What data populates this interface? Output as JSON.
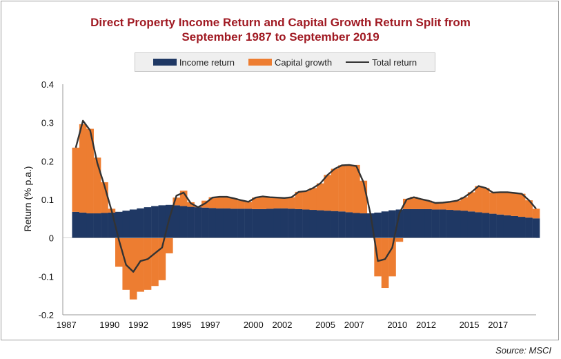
{
  "chart_data": {
    "type": "area",
    "title_line1": "Direct Property Income Return and Capital Growth Return Split from",
    "title_line2": "September 1987 to September 2019",
    "ylabel": "Return (% p.a.)",
    "xlabel": "",
    "ylim": [
      -0.2,
      0.4
    ],
    "yticks": [
      -0.2,
      -0.1,
      0,
      0.1,
      0.2,
      0.3,
      0.4
    ],
    "ytick_labels": [
      "-0.2",
      "-0.1",
      "0",
      "0.1",
      "0.2",
      "0.3",
      "0.4"
    ],
    "xlim": [
      1987.75,
      2019.75
    ],
    "xticks": [
      1987,
      1990,
      1992,
      1995,
      1997,
      2000,
      2002,
      2005,
      2007,
      2010,
      2012,
      2015,
      2017
    ],
    "grid": false,
    "legend_position": "top",
    "x": [
      1987.75,
      1988.25,
      1988.75,
      1989.25,
      1989.75,
      1990.25,
      1990.75,
      1991.25,
      1991.75,
      1992.25,
      1992.75,
      1993.25,
      1993.75,
      1994.25,
      1994.75,
      1995.25,
      1995.75,
      1996.25,
      1996.75,
      1997.25,
      1997.75,
      1998.25,
      1998.75,
      1999.25,
      1999.75,
      2000.25,
      2000.75,
      2001.25,
      2001.75,
      2002.25,
      2002.75,
      2003.25,
      2003.75,
      2004.25,
      2004.75,
      2005.25,
      2005.75,
      2006.25,
      2006.75,
      2007.25,
      2007.75,
      2008.25,
      2008.75,
      2009.25,
      2009.75,
      2010.25,
      2010.75,
      2011.25,
      2011.75,
      2012.25,
      2012.75,
      2013.25,
      2013.75,
      2014.25,
      2014.75,
      2015.25,
      2015.75,
      2016.25,
      2016.75,
      2017.25,
      2017.75,
      2018.25,
      2018.75,
      2019.25,
      2019.75
    ],
    "series": [
      {
        "name": "Income return",
        "color": "#1f3864",
        "values": [
          0.068,
          0.066,
          0.064,
          0.064,
          0.065,
          0.066,
          0.068,
          0.071,
          0.074,
          0.077,
          0.08,
          0.083,
          0.085,
          0.086,
          0.085,
          0.083,
          0.081,
          0.08,
          0.079,
          0.078,
          0.077,
          0.077,
          0.076,
          0.076,
          0.076,
          0.075,
          0.075,
          0.076,
          0.077,
          0.077,
          0.076,
          0.075,
          0.074,
          0.073,
          0.072,
          0.071,
          0.07,
          0.069,
          0.067,
          0.065,
          0.064,
          0.064,
          0.066,
          0.069,
          0.072,
          0.074,
          0.075,
          0.075,
          0.075,
          0.075,
          0.074,
          0.074,
          0.073,
          0.072,
          0.071,
          0.069,
          0.067,
          0.065,
          0.063,
          0.061,
          0.059,
          0.057,
          0.055,
          0.053,
          0.051
        ]
      },
      {
        "name": "Capital growth",
        "color": "#ed7d31",
        "values": [
          0.167,
          0.23,
          0.22,
          0.145,
          0.08,
          0.01,
          -0.075,
          -0.135,
          -0.16,
          -0.14,
          -0.135,
          -0.125,
          -0.11,
          -0.04,
          0.02,
          0.04,
          0.012,
          0.002,
          0.018,
          0.028,
          0.03,
          0.03,
          0.027,
          0.022,
          0.018,
          0.03,
          0.033,
          0.03,
          0.028,
          0.027,
          0.03,
          0.045,
          0.048,
          0.057,
          0.07,
          0.093,
          0.11,
          0.12,
          0.123,
          0.125,
          0.085,
          0.0,
          -0.1,
          -0.13,
          -0.1,
          -0.01,
          0.027,
          0.032,
          0.026,
          0.022,
          0.017,
          0.018,
          0.021,
          0.025,
          0.035,
          0.05,
          0.068,
          0.065,
          0.055,
          0.058,
          0.06,
          0.06,
          0.06,
          0.045,
          0.025
        ]
      },
      {
        "name": "Total return",
        "color": "#333333",
        "values": [
          0.235,
          0.305,
          0.28,
          0.195,
          0.135,
          0.07,
          -0.005,
          -0.07,
          -0.088,
          -0.06,
          -0.055,
          -0.04,
          -0.025,
          0.05,
          0.11,
          0.118,
          0.09,
          0.08,
          0.09,
          0.105,
          0.107,
          0.107,
          0.103,
          0.098,
          0.094,
          0.105,
          0.108,
          0.106,
          0.105,
          0.104,
          0.106,
          0.12,
          0.122,
          0.13,
          0.142,
          0.164,
          0.18,
          0.189,
          0.19,
          0.187,
          0.145,
          0.06,
          -0.06,
          -0.055,
          -0.025,
          0.065,
          0.1,
          0.106,
          0.101,
          0.097,
          0.091,
          0.092,
          0.094,
          0.097,
          0.106,
          0.119,
          0.135,
          0.13,
          0.118,
          0.119,
          0.119,
          0.117,
          0.115,
          0.098,
          0.076
        ]
      }
    ]
  },
  "source": "Source: MSCI"
}
